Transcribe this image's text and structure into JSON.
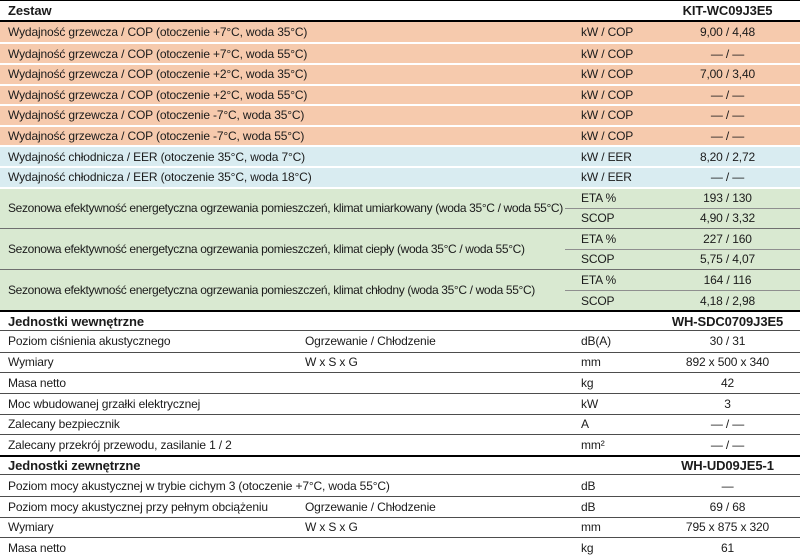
{
  "colors": {
    "heating_row_bg": "#f6caad",
    "cooling_row_bg": "#d9ecf1",
    "seasonal_row_bg": "#d9e9d1",
    "header_row_bg": "#ffffff",
    "text": "#1b1b1b",
    "heavy_border": "#000000"
  },
  "table": {
    "sections": [
      {
        "type": "header",
        "label": "Zestaw",
        "value": "KIT-WC09J3E5"
      },
      {
        "type": "rows",
        "style": "heating",
        "rows": [
          {
            "label": "Wydajność grzewcza / COP (otoczenie +7°C, woda 35°C)",
            "sublabel": "",
            "unit": "kW / COP",
            "value": "9,00 / 4,48"
          },
          {
            "label": "Wydajność grzewcza / COP (otoczenie +7°C, woda 55°C)",
            "sublabel": "",
            "unit": "kW / COP",
            "value": "— / —"
          },
          {
            "label": "Wydajność grzewcza / COP (otoczenie +2°C, woda 35°C)",
            "sublabel": "",
            "unit": "kW / COP",
            "value": "7,00 / 3,40"
          },
          {
            "label": "Wydajność grzewcza / COP (otoczenie +2°C, woda 55°C)",
            "sublabel": "",
            "unit": "kW / COP",
            "value": "— / —"
          },
          {
            "label": "Wydajność grzewcza / COP (otoczenie -7°C, woda 35°C)",
            "sublabel": "",
            "unit": "kW / COP",
            "value": "— / —"
          },
          {
            "label": "Wydajność grzewcza / COP (otoczenie -7°C, woda 55°C)",
            "sublabel": "",
            "unit": "kW / COP",
            "value": "— / —"
          }
        ]
      },
      {
        "type": "rows",
        "style": "cooling",
        "rows": [
          {
            "label": "Wydajność chłodnicza / EER (otoczenie 35°C, woda 7°C)",
            "sublabel": "",
            "unit": "kW / EER",
            "value": "8,20 / 2,72"
          },
          {
            "label": "Wydajność chłodnicza / EER (otoczenie 35°C, woda 18°C)",
            "sublabel": "",
            "unit": "kW / EER",
            "value": "— / —"
          }
        ]
      },
      {
        "type": "groups",
        "style": "seasonal",
        "groups": [
          {
            "label": "Sezonowa efektywność energetyczna ogrzewania pomieszczeń, klimat umiarkowany (woda 35°C / woda 55°C)",
            "rows": [
              {
                "unit": "ETA %",
                "value": "193 / 130"
              },
              {
                "unit": "SCOP",
                "value": "4,90 / 3,32"
              }
            ]
          },
          {
            "label": "Sezonowa efektywność energetyczna ogrzewania pomieszczeń, klimat ciepły (woda 35°C / woda 55°C)",
            "rows": [
              {
                "unit": "ETA %",
                "value": "227 / 160"
              },
              {
                "unit": "SCOP",
                "value": "5,75 / 4,07"
              }
            ]
          },
          {
            "label": "Sezonowa efektywność energetyczna ogrzewania pomieszczeń, klimat chłodny (woda 35°C / woda 55°C)",
            "rows": [
              {
                "unit": "ETA %",
                "value": "164 / 116"
              },
              {
                "unit": "SCOP",
                "value": "4,18 / 2,98"
              }
            ]
          }
        ]
      },
      {
        "type": "header",
        "label": "Jednostki wewnętrzne",
        "value": "WH-SDC0709J3E5"
      },
      {
        "type": "rows",
        "style": "plain",
        "rows": [
          {
            "label": "Poziom ciśnienia akustycznego",
            "sublabel": "Ogrzewanie / Chłodzenie",
            "unit": "dB(A)",
            "value": "30 / 31"
          },
          {
            "label": "Wymiary",
            "sublabel": "W x S x G",
            "unit": "mm",
            "value": "892 x 500 x 340"
          },
          {
            "label": "Masa netto",
            "sublabel": "",
            "unit": "kg",
            "value": "42"
          },
          {
            "label": "Moc wbudowanej grzałki elektrycznej",
            "sublabel": "",
            "unit": "kW",
            "value": "3"
          },
          {
            "label": "Zalecany bezpiecznik",
            "sublabel": "",
            "unit": "A",
            "value": "— / —"
          },
          {
            "label": "Zalecany przekrój przewodu, zasilanie 1 / 2",
            "sublabel": "",
            "unit": "mm²",
            "value": "— / —"
          }
        ]
      },
      {
        "type": "header",
        "label": "Jednostki zewnętrzne",
        "value": "WH-UD09JE5-1"
      },
      {
        "type": "rows",
        "style": "plain",
        "rows": [
          {
            "label": "Poziom mocy akustycznej w trybie cichym 3 (otoczenie +7°C, woda 55°C)",
            "sublabel": "",
            "unit": "dB",
            "value": "—"
          },
          {
            "label": "Poziom mocy akustycznej przy pełnym obciążeniu",
            "sublabel": "Ogrzewanie / Chłodzenie",
            "unit": "dB",
            "value": "69 / 68"
          },
          {
            "label": "Wymiary",
            "sublabel": "W x S x G",
            "unit": "mm",
            "value": "795 x 875 x 320"
          },
          {
            "label": "Masa netto",
            "sublabel": "",
            "unit": "kg",
            "value": "61"
          }
        ]
      }
    ]
  }
}
